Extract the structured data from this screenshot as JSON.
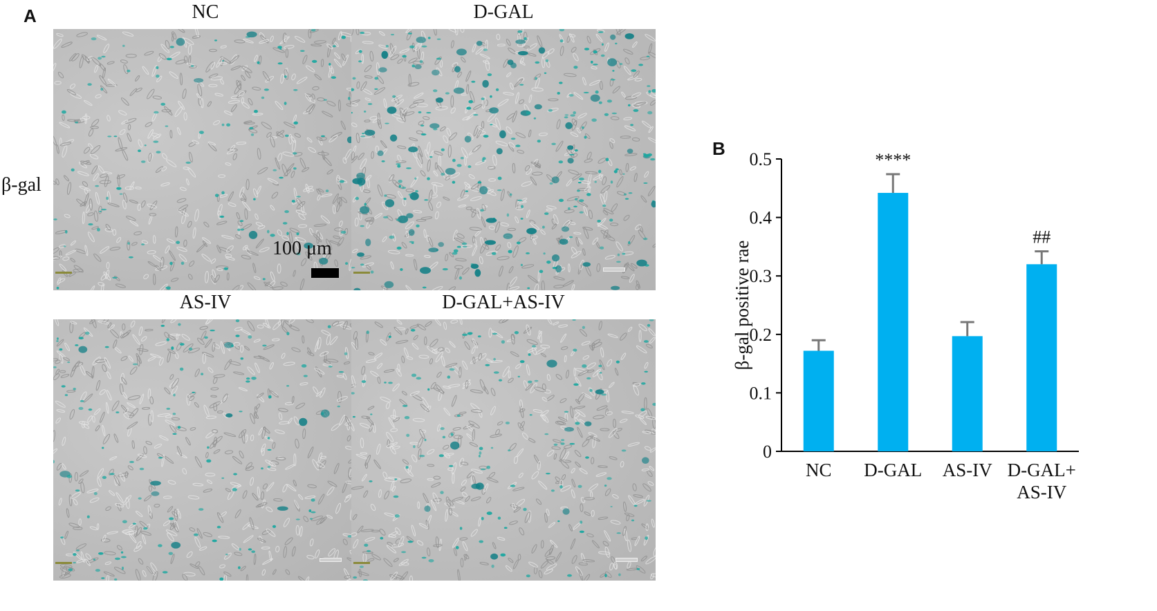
{
  "panel_a": {
    "letter": "A",
    "row_label": "β-gal",
    "images": [
      {
        "title": "NC",
        "blue_level": 0.25
      },
      {
        "title": "D-GAL",
        "blue_level": 1.0
      },
      {
        "title": "AS-IV",
        "blue_level": 0.3
      },
      {
        "title": "D-GAL+AS-IV",
        "blue_level": 0.35
      }
    ],
    "scale_bar_label": "100 μm"
  },
  "colors": {
    "bar": "#00b0f0",
    "error": "#777777",
    "stain": "#1aa7a0"
  },
  "chart_data": {
    "type": "bar",
    "panel_letter": "B",
    "ylabel": "β-gal positive rae",
    "ylim": [
      0,
      0.5
    ],
    "yticks": [
      "0",
      "0.1",
      "0.2",
      "0.3",
      "0.4",
      "0.5"
    ],
    "categories": [
      [
        "NC"
      ],
      [
        "D-GAL"
      ],
      [
        "AS-IV"
      ],
      [
        "D-GAL+",
        "AS-IV"
      ]
    ],
    "values": [
      0.172,
      0.442,
      0.197,
      0.32
    ],
    "errors": [
      0.018,
      0.032,
      0.024,
      0.022
    ],
    "annotations": [
      "",
      "****",
      "",
      "##"
    ]
  }
}
